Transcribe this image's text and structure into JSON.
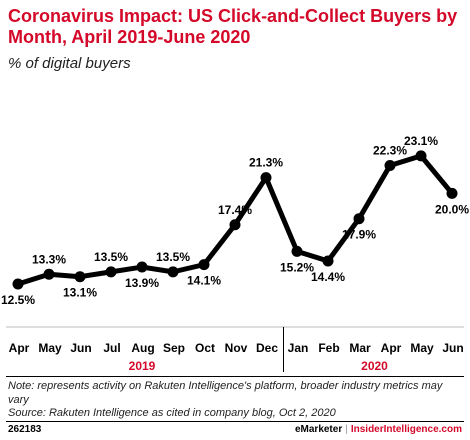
{
  "chart_data": {
    "type": "line",
    "title": "Coronavirus Impact: US Click-and-Collect Buyers by Month, April 2019-June 2020",
    "subtitle": "% of digital buyers",
    "categories": [
      "Apr",
      "May",
      "Jun",
      "Jul",
      "Aug",
      "Sep",
      "Oct",
      "Nov",
      "Dec",
      "Jan",
      "Feb",
      "Mar",
      "Apr",
      "May",
      "Jun"
    ],
    "year_groups": [
      {
        "label": "2019",
        "start": 0,
        "end": 8
      },
      {
        "label": "2020",
        "start": 9,
        "end": 14
      }
    ],
    "series": [
      {
        "values": [
          12.5,
          13.3,
          13.1,
          13.5,
          13.9,
          13.5,
          14.1,
          17.4,
          21.3,
          15.2,
          14.4,
          17.9,
          22.3,
          23.1,
          20.0
        ],
        "labels": [
          "12.5%",
          "13.3%",
          "13.1%",
          "13.5%",
          "13.9%",
          "13.5%",
          "14.1%",
          "17.4%",
          "21.3%",
          "15.2%",
          "14.4%",
          "17.9%",
          "22.3%",
          "23.1%",
          "20.0%"
        ],
        "label_position": [
          "below",
          "above",
          "below",
          "above",
          "below",
          "above",
          "below",
          "above",
          "above",
          "below",
          "below",
          "below",
          "above",
          "above",
          "below"
        ]
      }
    ],
    "ylim": [
      12,
      24
    ],
    "grid": false,
    "xlabel": "",
    "ylabel": ""
  },
  "colors": {
    "accent": "#d4092a",
    "line": "#000000",
    "axis_rule": "#bbbbbb"
  },
  "footer": {
    "note": "Note: represents activity on Rakuten Intelligence's platform, broader industry metrics may vary",
    "source": "Source: Rakuten Intelligence as cited in company blog, Oct 2, 2020",
    "id": "262183",
    "brand_left": "eMarketer",
    "brand_sep": "|",
    "brand_right": "InsiderIntelligence.com"
  }
}
